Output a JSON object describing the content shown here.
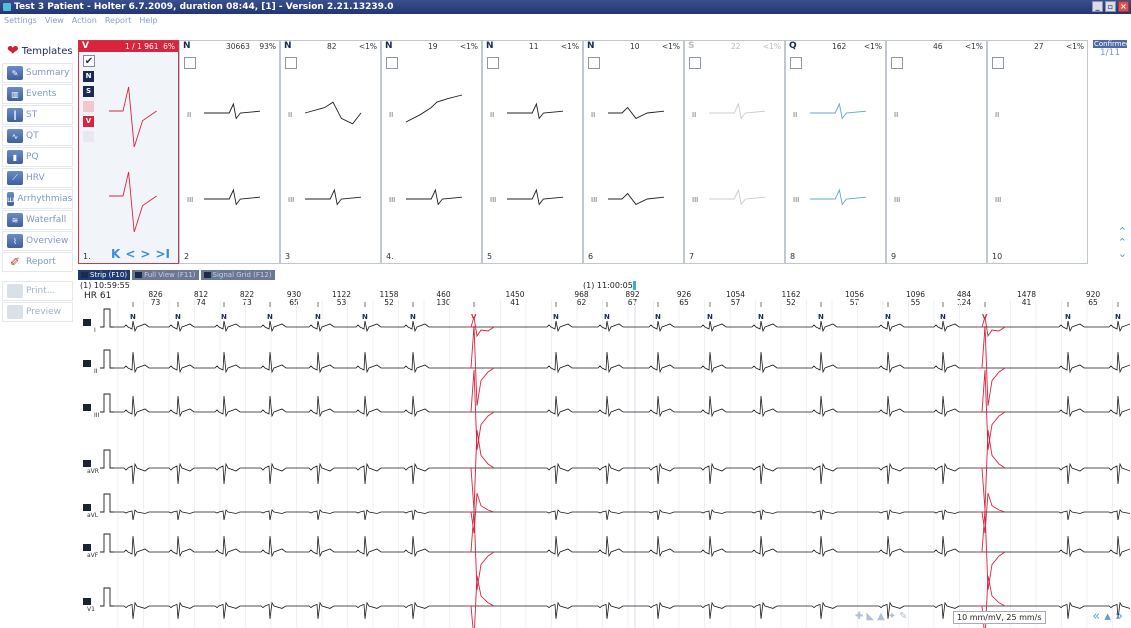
{
  "window": {
    "title": "Test 3 Patient - Holter 6.7.2009, duration 08:44, [1] - Version 2.21.13239.0"
  },
  "menu": [
    "Settings",
    "View",
    "Action",
    "Report",
    "Help"
  ],
  "sidebar": {
    "items": [
      {
        "label": "Templates",
        "icon": "heart-icon"
      },
      {
        "label": "Summary",
        "icon": "pencil-icon"
      },
      {
        "label": "Events",
        "icon": "events-icon"
      },
      {
        "label": "ST",
        "icon": "st-icon"
      },
      {
        "label": "QT",
        "icon": "qt-icon"
      },
      {
        "label": "PQ",
        "icon": "pq-icon"
      },
      {
        "label": "HRV",
        "icon": "hrv-icon"
      },
      {
        "label": "Arrhythmias",
        "icon": "arrhythmia-icon"
      },
      {
        "label": "Waterfall",
        "icon": "waterfall-icon"
      },
      {
        "label": "Overview",
        "icon": "overview-icon"
      },
      {
        "label": "Report",
        "icon": "report-icon"
      }
    ],
    "print_label": "Print...",
    "preview_label": "Preview"
  },
  "templates": {
    "cards": [
      {
        "cls": "V",
        "count": "1 / 1 961",
        "pct": "6%",
        "num": "1."
      },
      {
        "cls": "N",
        "count": "30663",
        "pct": "93%",
        "num": "2"
      },
      {
        "cls": "N",
        "count": "82",
        "pct": "<1%",
        "num": "3"
      },
      {
        "cls": "N",
        "count": "19",
        "pct": "<1%",
        "num": "4."
      },
      {
        "cls": "N",
        "count": "11",
        "pct": "<1%",
        "num": "5"
      },
      {
        "cls": "N",
        "count": "10",
        "pct": "<1%",
        "num": "6"
      },
      {
        "cls": "S",
        "count": "22",
        "pct": "<1%",
        "num": "7"
      },
      {
        "cls": "Q",
        "count": "162",
        "pct": "<1%",
        "num": "8"
      },
      {
        "cls": "",
        "count": "46",
        "pct": "<1%",
        "num": "9"
      },
      {
        "cls": "",
        "count": "27",
        "pct": "<1%",
        "num": "10"
      }
    ],
    "lead_labels": [
      "II",
      "III"
    ],
    "confirmed_label": "Confirmed",
    "confirmed_count": "1/11",
    "side_buttons": [
      "N",
      "S",
      "V"
    ]
  },
  "strip": {
    "tabs": [
      "Strip (F10)",
      "Full View (F11)",
      "Signal Grid (F12)"
    ],
    "start_time": "(1) 10:59:55",
    "hr_label": "HR  61",
    "mid_time": "(1) 11:00:05",
    "rr": [
      {
        "rr": "826",
        "hr": "73"
      },
      {
        "rr": "812",
        "hr": "74"
      },
      {
        "rr": "822",
        "hr": "73"
      },
      {
        "rr": "930",
        "hr": "65"
      },
      {
        "rr": "1122",
        "hr": "53"
      },
      {
        "rr": "1158",
        "hr": "52"
      },
      {
        "rr": "460",
        "hr": "130"
      },
      {
        "rr": "1450",
        "hr": "41"
      },
      {
        "rr": "968",
        "hr": "62"
      },
      {
        "rr": "892",
        "hr": "67"
      },
      {
        "rr": "926",
        "hr": "65"
      },
      {
        "rr": "1054",
        "hr": "57"
      },
      {
        "rr": "1162",
        "hr": "52"
      },
      {
        "rr": "1056",
        "hr": "57"
      },
      {
        "rr": "1096",
        "hr": "55"
      },
      {
        "rr": "484",
        "hr": "124"
      },
      {
        "rr": "1478",
        "hr": "41"
      },
      {
        "rr": "920",
        "hr": "65"
      }
    ],
    "beats": [
      "N",
      "N",
      "N",
      "N",
      "N",
      "N",
      "N",
      "V",
      "N",
      "N",
      "N",
      "N",
      "N",
      "N",
      "N",
      "N",
      "V",
      "N",
      "N"
    ],
    "leads": [
      "I",
      "II",
      "III",
      "aVR",
      "aVL",
      "aVF",
      "V1"
    ]
  },
  "footer": {
    "scale": "10 mm/mV, 25 mm/s"
  },
  "colors": {
    "accent": "#d8253d",
    "nav": "#3b8fd9",
    "cursor": "#2bb8c8"
  }
}
